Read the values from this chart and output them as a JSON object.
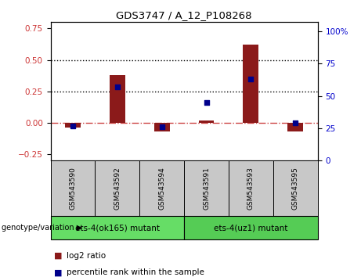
{
  "title": "GDS3747 / A_12_P108268",
  "samples": [
    "GSM543590",
    "GSM543592",
    "GSM543594",
    "GSM543591",
    "GSM543593",
    "GSM543595"
  ],
  "log2_ratio": [
    -0.04,
    0.38,
    -0.07,
    0.02,
    0.62,
    -0.07
  ],
  "percentile_rank": [
    27,
    57,
    26,
    45,
    63,
    29
  ],
  "groups": [
    {
      "label": "ets-4(ok165) mutant",
      "samples": [
        0,
        1,
        2
      ],
      "color": "#66DD66"
    },
    {
      "label": "ets-4(uz1) mutant",
      "samples": [
        3,
        4,
        5
      ],
      "color": "#55CC55"
    }
  ],
  "left_ylim": [
    -0.3,
    0.8
  ],
  "left_yticks": [
    -0.25,
    0,
    0.25,
    0.5,
    0.75
  ],
  "right_ylim": [
    0,
    107
  ],
  "right_yticks": [
    0,
    25,
    50,
    75,
    100
  ],
  "hlines": [
    0.25,
    0.5
  ],
  "bar_color": "#8B1A1A",
  "dot_color": "#00008B",
  "bar_width": 0.35,
  "zero_line_color": "#CC4444",
  "zero_line_style": "-.",
  "hline_style": ":",
  "hline_color": "black",
  "left_label_color": "#CC3333",
  "right_label_color": "#0000CC",
  "legend_log2": "log2 ratio",
  "legend_pct": "percentile rank within the sample",
  "group_label": "genotype/variation",
  "sample_bg_color": "#C8C8C8",
  "figsize": [
    4.61,
    3.54
  ],
  "dpi": 100
}
